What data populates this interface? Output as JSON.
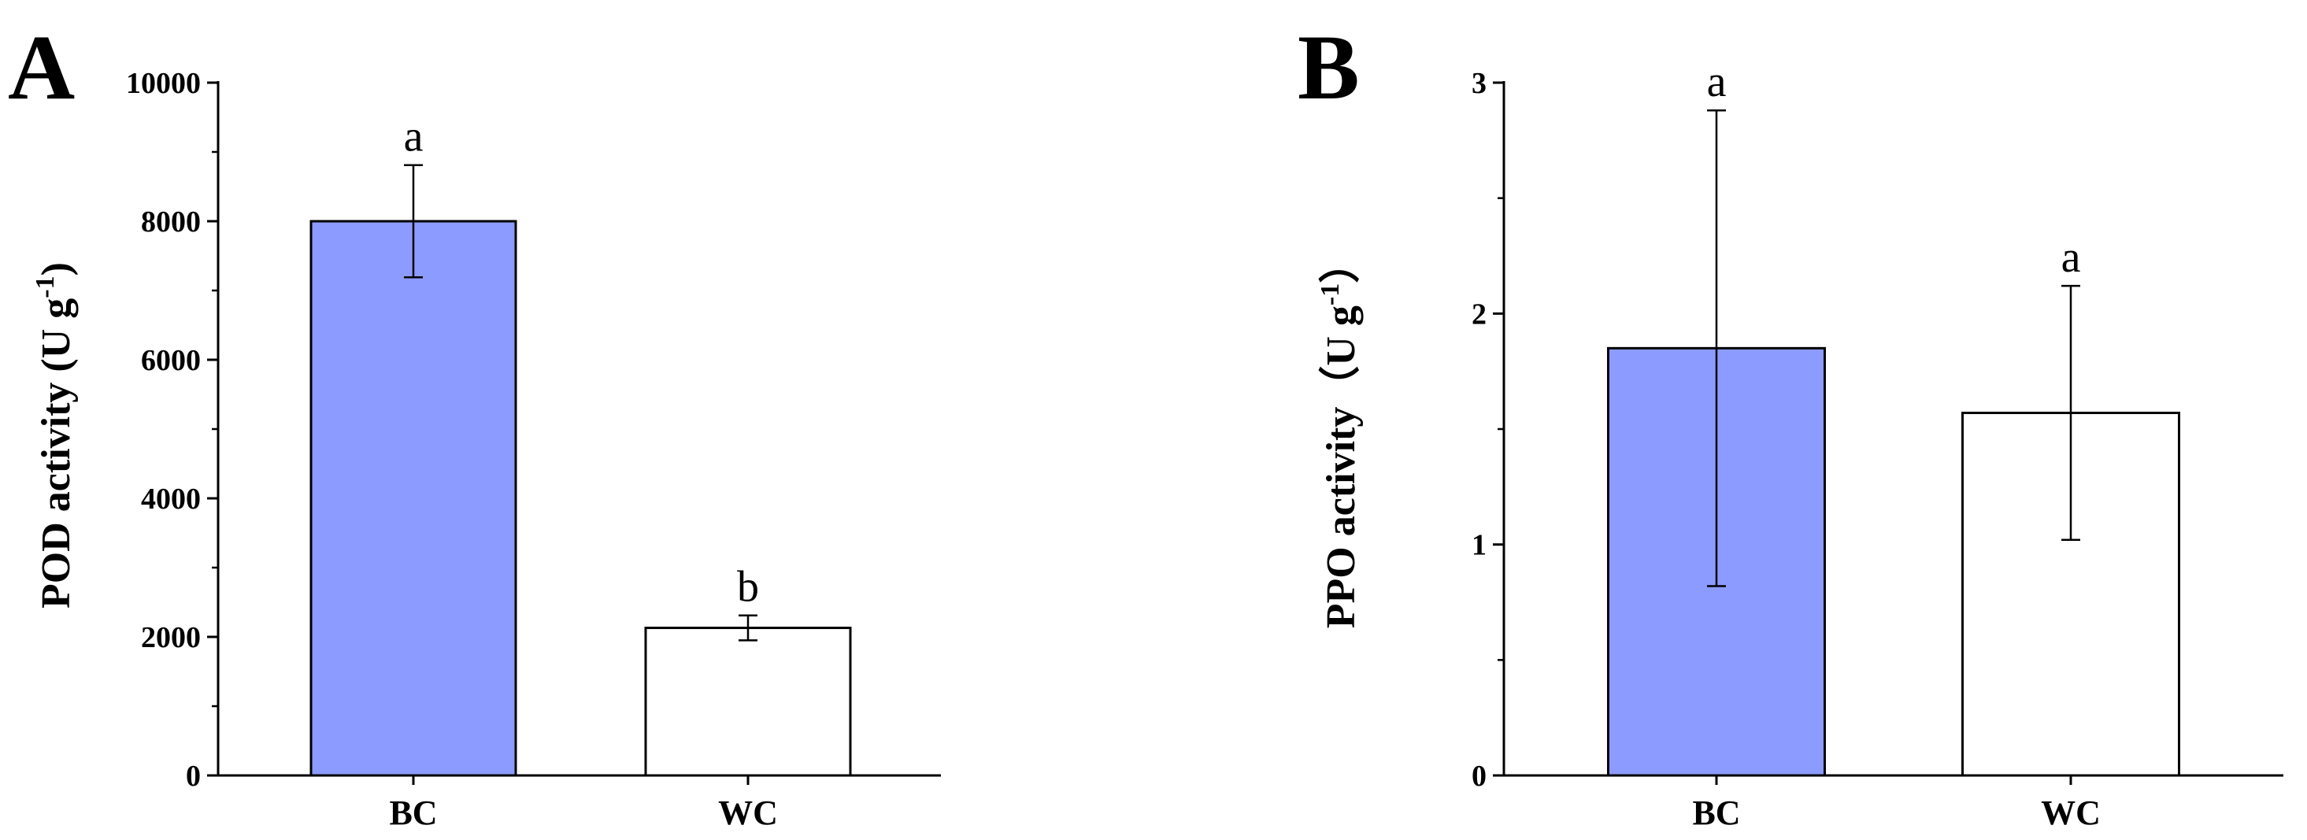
{
  "chart_data": [
    {
      "panel": "A",
      "type": "bar",
      "categories": [
        "BC",
        "WC"
      ],
      "values": [
        8000,
        2130
      ],
      "errors": [
        810,
        180
      ],
      "significance": [
        "a",
        "b"
      ],
      "bar_colors": [
        "#8c9bff",
        "#ffffff"
      ],
      "ylabel": "POD activity (U g",
      "ylabel_sup": "-1",
      "ylabel_close": ")",
      "ylim": [
        0,
        10000
      ],
      "yticks": [
        0,
        2000,
        4000,
        6000,
        8000,
        10000
      ],
      "grid": false
    },
    {
      "panel": "B",
      "type": "bar",
      "categories": [
        "BC",
        "WC"
      ],
      "values": [
        1.85,
        1.57
      ],
      "errors": [
        1.03,
        0.55
      ],
      "significance": [
        "a",
        "a"
      ],
      "bar_colors": [
        "#8c9bff",
        "#ffffff"
      ],
      "ylabel": "PPO activity（U g",
      "ylabel_sup": "-1",
      "ylabel_close": "）",
      "ylim": [
        0,
        3
      ],
      "yticks": [
        0,
        1,
        2,
        3
      ],
      "grid": false
    }
  ]
}
